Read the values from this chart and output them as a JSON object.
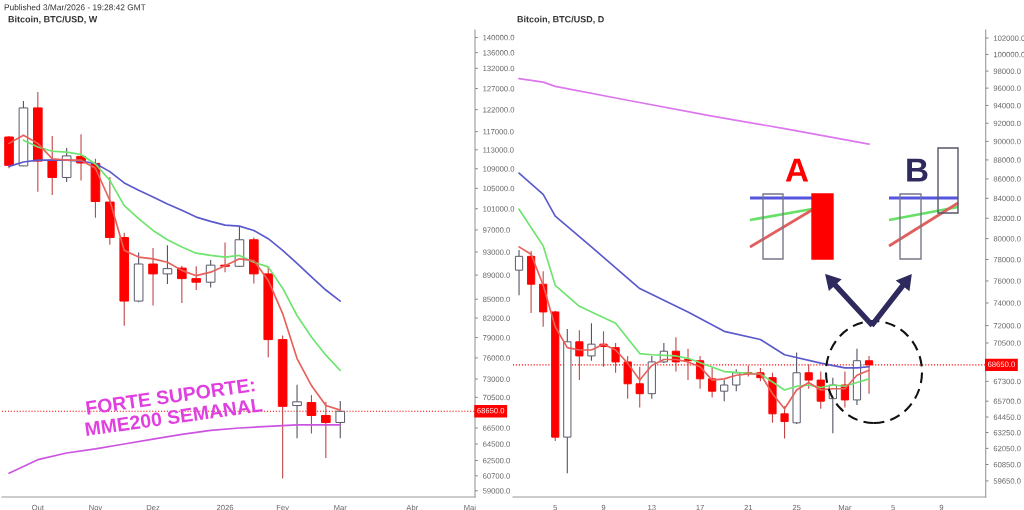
{
  "chart_data": [
    {
      "type": "candlestick",
      "title": "Bitcoin, BTC/USD, W",
      "log": "y",
      "annotations": [
        "Published 3/Mar/2026 - 19:28:42 GMT",
        "FORTE SUPORTE:\nMME200 SEMANAL"
      ],
      "x": [
        "2025-09-22",
        "2025-09-29",
        "2025-10-06",
        "2025-10-13",
        "2025-10-20",
        "2025-10-27",
        "2025-11-03",
        "2025-11-10",
        "2025-11-17",
        "2025-11-24",
        "2025-12-01",
        "2025-12-08",
        "2025-12-15",
        "2025-12-22",
        "2025-12-29",
        "2026-01-05",
        "2026-01-12",
        "2026-01-19",
        "2026-01-26",
        "2026-02-02",
        "2026-02-09",
        "2026-02-16",
        "2026-02-23",
        "2026-03-02"
      ],
      "ohlc": [
        [
          115800,
          116000,
          109100,
          109700
        ],
        [
          109600,
          124000,
          109500,
          122400
        ],
        [
          122400,
          126200,
          104300,
          110600
        ],
        [
          110800,
          116000,
          103700,
          107200
        ],
        [
          107200,
          113400,
          106300,
          111700
        ],
        [
          111600,
          116400,
          106600,
          110200
        ],
        [
          110100,
          111100,
          99300,
          102400
        ],
        [
          102300,
          107300,
          94300,
          95600
        ],
        [
          95600,
          96500,
          80800,
          84700
        ],
        [
          84700,
          92900,
          84500,
          90900
        ],
        [
          90900,
          93700,
          84000,
          89200
        ],
        [
          89200,
          94200,
          87500,
          90100
        ],
        [
          90200,
          90600,
          84400,
          88400
        ],
        [
          88400,
          90500,
          86500,
          87800
        ],
        [
          87800,
          91600,
          86900,
          90700
        ],
        [
          90700,
          94700,
          89500,
          90500
        ],
        [
          90500,
          97700,
          90400,
          95200
        ],
        [
          95200,
          95600,
          87600,
          89200
        ],
        [
          89200,
          90500,
          76100,
          78700
        ],
        [
          78700,
          79300,
          60400,
          69300
        ],
        [
          69400,
          72200,
          65200,
          69900
        ],
        [
          69800,
          70800,
          65800,
          68100
        ],
        [
          68100,
          69900,
          62800,
          67200
        ],
        [
          67200,
          70000,
          65200,
          68650
        ]
      ],
      "colors": [
        "#ff0000",
        "#ffffff",
        "#ff0000",
        "#ff0000",
        "#ffffff",
        "#ff0000",
        "#ff0000",
        "#ff0000",
        "#ff0000",
        "#ffffff",
        "#ff0000",
        "#ffffff",
        "#ff0000",
        "#ff0000",
        "#ffffff",
        "#ff0000",
        "#ffffff",
        "#ff0000",
        "#ff0000",
        "#ff0000",
        "#ffffff",
        "#ff0000",
        "#ff0000",
        "#ffffff"
      ],
      "series": [
        {
          "type": "line",
          "color": "#cc55e0",
          "x": [
            "2025-09-22",
            "2025-10-06",
            "2025-10-20",
            "2025-11-03",
            "2025-11-17",
            "2025-12-01",
            "2025-12-15",
            "2025-12-29",
            "2026-01-12",
            "2026-01-26",
            "2026-02-09",
            "2026-02-23",
            "2026-03-02"
          ],
          "values": [
            61000,
            62600,
            63400,
            63900,
            64500,
            65100,
            65700,
            66200,
            66500,
            66700,
            66900,
            66900,
            66900
          ]
        },
        {
          "type": "line",
          "color": "#5a5acd",
          "x": [
            "2025-09-22",
            "2025-09-29",
            "2025-10-06",
            "2025-10-13",
            "2025-10-20",
            "2025-10-27",
            "2025-11-03",
            "2025-11-10",
            "2025-11-17",
            "2025-11-24",
            "2025-12-01",
            "2025-12-08",
            "2025-12-15",
            "2025-12-22",
            "2025-12-29",
            "2026-01-05",
            "2026-01-12",
            "2026-01-19",
            "2026-01-26",
            "2026-02-02",
            "2026-02-09",
            "2026-02-16",
            "2026-02-23",
            "2026-03-02"
          ],
          "values": [
            109500,
            110400,
            110800,
            110800,
            110800,
            110600,
            110100,
            108400,
            106100,
            104600,
            103300,
            101900,
            100700,
            99400,
            98600,
            97900,
            97700,
            96900,
            95400,
            93300,
            91000,
            88700,
            86500,
            84700
          ]
        },
        {
          "type": "line",
          "color": "#6ee46e",
          "x": [
            "2025-09-29",
            "2025-10-06",
            "2025-10-13",
            "2025-10-20",
            "2025-10-27",
            "2025-11-03",
            "2025-11-10",
            "2025-11-17",
            "2025-11-24",
            "2025-12-01",
            "2025-12-08",
            "2025-12-15",
            "2025-12-22",
            "2025-12-29",
            "2026-01-05",
            "2026-01-12",
            "2026-01-19",
            "2026-01-26",
            "2026-02-02",
            "2026-02-09",
            "2026-02-16",
            "2026-02-23",
            "2026-03-02"
          ],
          "values": [
            115100,
            113600,
            112700,
            112500,
            112000,
            110000,
            106600,
            101600,
            99100,
            96900,
            95200,
            93900,
            92800,
            92400,
            92100,
            92400,
            91200,
            90400,
            86800,
            82400,
            79100,
            76400,
            74200
          ]
        },
        {
          "type": "line",
          "color": "#e8605a",
          "x": [
            "2025-09-22",
            "2025-09-29",
            "2025-10-06",
            "2025-10-13",
            "2025-10-20",
            "2025-10-27",
            "2025-11-03",
            "2025-11-10",
            "2025-11-17",
            "2025-11-24",
            "2025-12-01",
            "2025-12-08",
            "2025-12-15",
            "2025-12-22",
            "2025-12-29",
            "2026-01-05",
            "2026-01-12",
            "2026-01-19",
            "2026-01-26",
            "2026-02-02",
            "2026-02-09",
            "2026-02-16",
            "2026-02-23",
            "2026-03-02"
          ],
          "values": [
            114400,
            116200,
            114400,
            111100,
            110800,
            110800,
            109100,
            102600,
            93300,
            92100,
            91800,
            91200,
            89800,
            88900,
            89500,
            90600,
            91800,
            91500,
            88100,
            82700,
            75900,
            72100,
            69400,
            68800
          ]
        }
      ],
      "ref_lines": [
        {
          "axis": "y",
          "value": 68650,
          "label": "68650.0",
          "color": "#ff0000",
          "line_style": "dotted"
        }
      ],
      "xlim": [
        "2025-09-18T14:00",
        "2026-05-06T12:00"
      ],
      "xticks": [
        {
          "value": "2025-10-06",
          "label": "Out"
        },
        {
          "value": "2025-11-03",
          "label": "Nov"
        },
        {
          "value": "2025-12-01",
          "label": "Dez"
        },
        {
          "value": "2026-01-05",
          "label": "2026"
        },
        {
          "value": "2026-02-02",
          "label": "Fev"
        },
        {
          "value": "2026-03-02",
          "label": "Mar"
        },
        {
          "value": "2026-04-06",
          "label": "Abr"
        },
        {
          "value": "2026-05-04",
          "label": "Mai"
        }
      ],
      "ylim": [
        58300,
        142000
      ],
      "yticks": [
        {
          "value": 140000,
          "label": "140000.0"
        },
        {
          "value": 136000,
          "label": "136000.0"
        },
        {
          "value": 132000,
          "label": "132000.0"
        },
        {
          "value": 127000,
          "label": "127000.0"
        },
        {
          "value": 122000,
          "label": "122000.0"
        },
        {
          "value": 117000,
          "label": "117000.0"
        },
        {
          "value": 113000,
          "label": "113000.0"
        },
        {
          "value": 109000,
          "label": "109000.0"
        },
        {
          "value": 105000,
          "label": "105000.0"
        },
        {
          "value": 101000,
          "label": "101000.0"
        },
        {
          "value": 97000,
          "label": "97000.0"
        },
        {
          "value": 93000,
          "label": "93000.0"
        },
        {
          "value": 89000,
          "label": "89000.0"
        },
        {
          "value": 85000,
          "label": "85000.0"
        },
        {
          "value": 82000,
          "label": "82000.0"
        },
        {
          "value": 79000,
          "label": "79000.0"
        },
        {
          "value": 76000,
          "label": "76000.0"
        },
        {
          "value": 73000,
          "label": "73000.0"
        },
        {
          "value": 70500,
          "label": "70500.0"
        },
        {
          "value": 66500,
          "label": "66500.0"
        },
        {
          "value": 64500,
          "label": "64500.0"
        },
        {
          "value": 62500,
          "label": "62500.0"
        },
        {
          "value": 60700,
          "label": "60700.0"
        },
        {
          "value": 59000,
          "label": "59000.0"
        }
      ]
    },
    {
      "type": "candlestick",
      "title": "Bitcoin, BTC/USD, D",
      "log": "y",
      "annotations": [
        "A",
        "B"
      ],
      "x": [
        "2026-02-02",
        "2026-02-03",
        "2026-02-04",
        "2026-02-05",
        "2026-02-06",
        "2026-02-07",
        "2026-02-08",
        "2026-02-09",
        "2026-02-10",
        "2026-02-11",
        "2026-02-12",
        "2026-02-13",
        "2026-02-14",
        "2026-02-15",
        "2026-02-16",
        "2026-02-17",
        "2026-02-18",
        "2026-02-19",
        "2026-02-20",
        "2026-02-21",
        "2026-02-22",
        "2026-02-23",
        "2026-02-24",
        "2026-02-25",
        "2026-02-26",
        "2026-02-27",
        "2026-02-28",
        "2026-03-01",
        "2026-03-02",
        "2026-03-03"
      ],
      "ohlc": [
        [
          77000,
          78900,
          74700,
          78300
        ],
        [
          78300,
          78800,
          73100,
          75700
        ],
        [
          75700,
          76900,
          71900,
          73200
        ],
        [
          73200,
          73300,
          62600,
          62900
        ],
        [
          62900,
          71700,
          60200,
          70600
        ],
        [
          70600,
          71600,
          67400,
          69400
        ],
        [
          69400,
          72200,
          69000,
          70400
        ],
        [
          70400,
          71500,
          68500,
          70200
        ],
        [
          70100,
          70500,
          68000,
          68900
        ],
        [
          68900,
          69400,
          65900,
          67100
        ],
        [
          67100,
          68500,
          65200,
          66300
        ],
        [
          66300,
          69400,
          65900,
          68900
        ],
        [
          68900,
          70500,
          68800,
          69800
        ],
        [
          69800,
          71000,
          68100,
          68900
        ],
        [
          69100,
          70000,
          67400,
          69000
        ],
        [
          69000,
          69400,
          66700,
          67500
        ],
        [
          67500,
          68400,
          66000,
          66500
        ],
        [
          66500,
          67400,
          65700,
          67000
        ],
        [
          67000,
          68300,
          66500,
          68000
        ],
        [
          68000,
          68600,
          67700,
          67950
        ],
        [
          68000,
          68400,
          67300,
          67600
        ],
        [
          67600,
          68000,
          64000,
          64700
        ],
        [
          64700,
          65300,
          62800,
          64100
        ],
        [
          64000,
          69700,
          63900,
          68000
        ],
        [
          68000,
          68700,
          66700,
          67400
        ],
        [
          67400,
          68100,
          65100,
          65700
        ],
        [
          65900,
          67600,
          63200,
          67000
        ],
        [
          67000,
          68100,
          65200,
          65800
        ],
        [
          65800,
          70000,
          65400,
          69000
        ],
        [
          69000,
          69400,
          66300,
          68650
        ]
      ],
      "colors": [
        "#ffffff",
        "#ff0000",
        "#ff0000",
        "#ff0000",
        "#ffffff",
        "#ff0000",
        "#ffffff",
        "#ff0000",
        "#ff0000",
        "#ff0000",
        "#ff0000",
        "#ffffff",
        "#ffffff",
        "#ff0000",
        "#ff0000",
        "#ff0000",
        "#ff0000",
        "#ffffff",
        "#ffffff",
        "#ff0000",
        "#ff0000",
        "#ff0000",
        "#ff0000",
        "#ffffff",
        "#ff0000",
        "#ff0000",
        "#ffffff",
        "#ff0000",
        "#ffffff",
        "#ff0000"
      ],
      "series": [
        {
          "type": "line",
          "color": "#dd77ee",
          "x": [
            "2026-02-02",
            "2026-02-04",
            "2026-02-05",
            "2026-02-11",
            "2026-02-18",
            "2026-02-24",
            "2026-03-03"
          ],
          "values": [
            97100,
            96700,
            96200,
            94600,
            92800,
            91400,
            89700
          ]
        },
        {
          "type": "line",
          "color": "#5a5acd",
          "x": [
            "2026-02-02",
            "2026-02-04",
            "2026-02-05",
            "2026-02-08",
            "2026-02-12",
            "2026-02-16",
            "2026-02-19",
            "2026-02-22",
            "2026-02-24",
            "2026-02-27",
            "2026-03-01",
            "2026-03-02",
            "2026-03-03"
          ],
          "values": [
            86600,
            84400,
            82200,
            79200,
            75300,
            73200,
            71500,
            70800,
            69500,
            68800,
            68400,
            68400,
            68500
          ]
        },
        {
          "type": "line",
          "color": "#6ee46e",
          "x": [
            "2026-02-02",
            "2026-02-04",
            "2026-02-05",
            "2026-02-07",
            "2026-02-10",
            "2026-02-12",
            "2026-02-13",
            "2026-02-15",
            "2026-02-16",
            "2026-02-19",
            "2026-02-22",
            "2026-02-24",
            "2026-02-25",
            "2026-02-26",
            "2026-02-27",
            "2026-02-28",
            "2026-03-01",
            "2026-03-02",
            "2026-03-03"
          ],
          "values": [
            82900,
            79300,
            75600,
            73700,
            72200,
            69600,
            69500,
            69400,
            69200,
            68100,
            67900,
            66600,
            66900,
            67000,
            66800,
            67000,
            66900,
            67200,
            67500
          ]
        },
        {
          "type": "line",
          "color": "#e8605a",
          "x": [
            "2026-02-02",
            "2026-02-03",
            "2026-02-04",
            "2026-02-05",
            "2026-02-06",
            "2026-02-07",
            "2026-02-08",
            "2026-02-09",
            "2026-02-10",
            "2026-02-11",
            "2026-02-12",
            "2026-02-13",
            "2026-02-14",
            "2026-02-15",
            "2026-02-16",
            "2026-02-17",
            "2026-02-18",
            "2026-02-19",
            "2026-02-20",
            "2026-02-21",
            "2026-02-22",
            "2026-02-23",
            "2026-02-24",
            "2026-02-25",
            "2026-02-26",
            "2026-02-27",
            "2026-02-28",
            "2026-03-01",
            "2026-03-02",
            "2026-03-03"
          ],
          "values": [
            79200,
            78500,
            75600,
            71900,
            70100,
            69900,
            69900,
            70400,
            69900,
            68800,
            67400,
            68600,
            69100,
            69100,
            68900,
            68500,
            67400,
            67500,
            67800,
            67900,
            67900,
            66300,
            65100,
            66600,
            67200,
            66600,
            66700,
            66700,
            67800,
            68200
          ]
        }
      ],
      "ref_lines": [
        {
          "axis": "y",
          "value": 68650,
          "label": "68650.0",
          "color": "#ff0000",
          "line_style": "dotted"
        }
      ],
      "xlim": [
        "2026-02-01T12:00",
        "2026-03-12T16:00"
      ],
      "xticks": [
        {
          "value": "2026-02-05",
          "label": "5"
        },
        {
          "value": "2026-02-09",
          "label": "9"
        },
        {
          "value": "2026-02-13",
          "label": "13"
        },
        {
          "value": "2026-02-17",
          "label": "17"
        },
        {
          "value": "2026-02-21",
          "label": "21"
        },
        {
          "value": "2026-02-25",
          "label": "25"
        },
        {
          "value": "2026-03-01",
          "label": "Mar"
        },
        {
          "value": "2026-03-05",
          "label": "5"
        },
        {
          "value": "2026-03-09",
          "label": "9"
        }
      ],
      "ylim": [
        58500,
        103000
      ],
      "yticks": [
        {
          "value": 102000,
          "label": "102000.0"
        },
        {
          "value": 100000,
          "label": "100000.0"
        },
        {
          "value": 98000,
          "label": "98000.0"
        },
        {
          "value": 96000,
          "label": "96000.0"
        },
        {
          "value": 94000,
          "label": "94000.0"
        },
        {
          "value": 92000,
          "label": "92000.0"
        },
        {
          "value": 90000,
          "label": "90000.0"
        },
        {
          "value": 88000,
          "label": "88000.0"
        },
        {
          "value": 86000,
          "label": "86000.0"
        },
        {
          "value": 84000,
          "label": "84000.0"
        },
        {
          "value": 82000,
          "label": "82000.0"
        },
        {
          "value": 80000,
          "label": "80000.0"
        },
        {
          "value": 78000,
          "label": "78000.0"
        },
        {
          "value": 76000,
          "label": "76000.0"
        },
        {
          "value": 74000,
          "label": "74000.0"
        },
        {
          "value": 72000,
          "label": "72000.0"
        },
        {
          "value": 70500,
          "label": "70500.0"
        },
        {
          "value": 67300,
          "label": "67300.0"
        },
        {
          "value": 65700,
          "label": "65700.0"
        },
        {
          "value": 64450,
          "label": "64450.0"
        },
        {
          "value": 63250,
          "label": "63250.0"
        },
        {
          "value": 62050,
          "label": "62050.0"
        },
        {
          "value": 60850,
          "label": "60850.0"
        },
        {
          "value": 59650,
          "label": "59650.0"
        }
      ]
    }
  ]
}
